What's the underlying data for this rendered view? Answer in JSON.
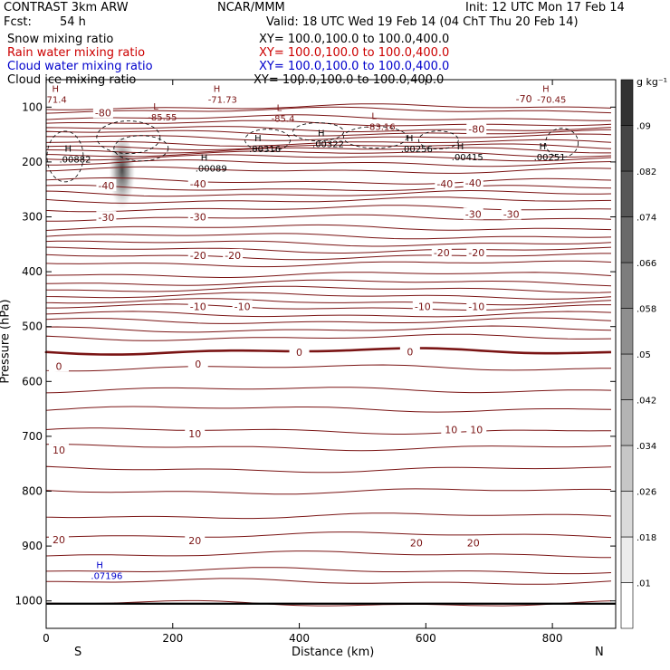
{
  "header": {
    "model": "CONTRAST  3km ARW",
    "center": "NCAR/MMM",
    "init": "Init: 12 UTC Mon 17 Feb 14",
    "fcst_label": "Fcst:",
    "fcst_value": "54 h",
    "valid": "Valid: 18 UTC Wed 19 Feb 14 (04 ChT Thu 20 Feb 14)",
    "fields": [
      {
        "name": "Snow mixing ratio",
        "xy": "XY= 100.0,100.0 to 100.0,400.0",
        "color": "#000000"
      },
      {
        "name": "Rain water mixing ratio",
        "xy": "XY= 100.0,100.0 to 100.0,400.0",
        "color": "#cc0000"
      },
      {
        "name": "Cloud water mixing ratio",
        "xy": "XY= 100.0,100.0 to 100.0,400.0",
        "color": "#0000cc"
      },
      {
        "name": "Cloud ice mixing ratio",
        "xy": "XY= 100.0,100.0 to 100.0,400.0",
        "color": "#000000"
      }
    ]
  },
  "chart_data": {
    "type": "contour",
    "xlabel": "Distance (km)",
    "ylabel": "Pressure (hPa)",
    "xlim": [
      0,
      900
    ],
    "ylim": [
      1050,
      50
    ],
    "x_ticks": [
      0,
      200,
      400,
      600,
      800
    ],
    "y_ticks": [
      100,
      200,
      300,
      400,
      500,
      600,
      700,
      800,
      900,
      1000
    ],
    "x_end_labels": {
      "left": "S",
      "right": "N"
    },
    "colorbar": {
      "unit": "g kg⁻¹",
      "levels": [
        ".01",
        ".018",
        ".026",
        ".034",
        ".042",
        ".05",
        ".058",
        ".066",
        ".074",
        ".082",
        ".09"
      ]
    },
    "temperature_contours": [
      {
        "label": "-80",
        "x": 90,
        "p": 110
      },
      {
        "label": "-80",
        "x": 680,
        "p": 140
      },
      {
        "label": "-70",
        "x": 755,
        "p": 85
      },
      {
        "label": "-40",
        "x": 95,
        "p": 243
      },
      {
        "label": "-40",
        "x": 240,
        "p": 240
      },
      {
        "label": "-40",
        "x": 630,
        "p": 240
      },
      {
        "label": "-40",
        "x": 675,
        "p": 238
      },
      {
        "label": "-30",
        "x": 95,
        "p": 301
      },
      {
        "label": "-30",
        "x": 240,
        "p": 300
      },
      {
        "label": "-30",
        "x": 675,
        "p": 295
      },
      {
        "label": "-30",
        "x": 735,
        "p": 295
      },
      {
        "label": "-20",
        "x": 240,
        "p": 370
      },
      {
        "label": "-20",
        "x": 295,
        "p": 370
      },
      {
        "label": "-20",
        "x": 625,
        "p": 365
      },
      {
        "label": "-20",
        "x": 680,
        "p": 365
      },
      {
        "label": "-10",
        "x": 240,
        "p": 463
      },
      {
        "label": "-10",
        "x": 310,
        "p": 463
      },
      {
        "label": "-10",
        "x": 595,
        "p": 463
      },
      {
        "label": "-10",
        "x": 680,
        "p": 463
      },
      {
        "label": "0",
        "x": 20,
        "p": 572
      },
      {
        "label": "0",
        "x": 240,
        "p": 568
      },
      {
        "label": "0",
        "x": 400,
        "p": 547
      },
      {
        "label": "0",
        "x": 575,
        "p": 546
      },
      {
        "label": "10",
        "x": 20,
        "p": 725
      },
      {
        "label": "10",
        "x": 235,
        "p": 695
      },
      {
        "label": "10",
        "x": 640,
        "p": 688
      },
      {
        "label": "10",
        "x": 680,
        "p": 688
      },
      {
        "label": "20",
        "x": 20,
        "p": 888
      },
      {
        "label": "20",
        "x": 235,
        "p": 890
      },
      {
        "label": "20",
        "x": 585,
        "p": 894
      },
      {
        "label": "20",
        "x": 675,
        "p": 894
      }
    ],
    "extrema": [
      {
        "type": "H",
        "value": "71.4",
        "x": 15,
        "p": 82
      },
      {
        "type": "L",
        "value": "-85.55",
        "x": 175,
        "p": 114
      },
      {
        "type": "H",
        "value": "-71.73",
        "x": 270,
        "p": 82
      },
      {
        "type": "L",
        "value": "-85.4",
        "x": 370,
        "p": 117
      },
      {
        "type": "L",
        "value": "-83.16",
        "x": 520,
        "p": 132
      },
      {
        "type": "H",
        "value": "-70.45",
        "x": 790,
        "p": 82
      },
      {
        "type": "H",
        "value": ".00882",
        "x": 35,
        "p": 191
      },
      {
        "type": "H",
        "value": ".00089",
        "x": 250,
        "p": 208
      },
      {
        "type": "H",
        "value": ".00316",
        "x": 335,
        "p": 172
      },
      {
        "type": "H",
        "value": ".00322",
        "x": 435,
        "p": 163
      },
      {
        "type": "H",
        "value": ".00256",
        "x": 575,
        "p": 172
      },
      {
        "type": "H",
        "value": ".00415",
        "x": 655,
        "p": 187
      },
      {
        "type": "H",
        "value": ".00251",
        "x": 785,
        "p": 187
      },
      {
        "type": "H",
        "value": ".07196",
        "x": 85,
        "p": 950
      }
    ]
  }
}
